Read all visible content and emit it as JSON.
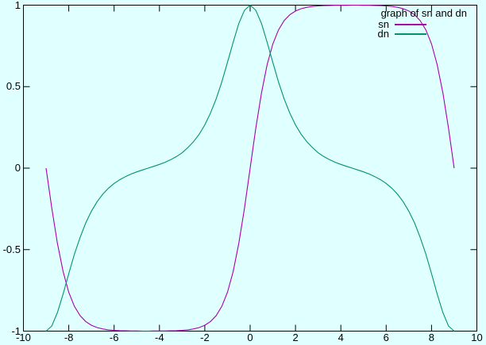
{
  "figure": {
    "background_color": "#e0ffff",
    "frame_color": "#000000"
  },
  "legend": {
    "title": "graph of sn and dn",
    "entries": [
      {
        "label": "sn",
        "color": "#aa00aa"
      },
      {
        "label": "dn",
        "color": "#009272"
      }
    ]
  },
  "chart_data": {
    "type": "line",
    "title": "graph of sn and dn",
    "xlabel": "",
    "ylabel": "",
    "x_range": [
      -10,
      10
    ],
    "y_range": [
      -1,
      1
    ],
    "x_ticks": [
      -10,
      -8,
      -6,
      -4,
      -2,
      0,
      2,
      4,
      6,
      8,
      10
    ],
    "x_tick_labels": [
      "-10",
      "-8",
      "-6",
      "-4",
      "-2",
      "0",
      "2",
      "4",
      "6",
      "8",
      "10"
    ],
    "y_ticks": [
      -1,
      -0.5,
      0,
      0.5,
      1
    ],
    "y_tick_labels": [
      "-1",
      "-0.5",
      "0",
      "0.5",
      "1"
    ],
    "grid": false,
    "legend_position": "top-right-inside",
    "background": "#e0ffff",
    "series": [
      {
        "name": "sn",
        "color": "#aa00aa",
        "points": [
          [
            -9,
            0
          ],
          [
            -8.75,
            -0.245
          ],
          [
            -8.5,
            -0.462
          ],
          [
            -8.25,
            -0.635
          ],
          [
            -8,
            -0.762
          ],
          [
            -7.75,
            -0.848
          ],
          [
            -7.5,
            -0.905
          ],
          [
            -7.25,
            -0.941
          ],
          [
            -7,
            -0.964
          ],
          [
            -6.75,
            -0.978
          ],
          [
            -6.5,
            -0.987
          ],
          [
            -6.25,
            -0.992
          ],
          [
            -6,
            -0.995
          ],
          [
            -5.75,
            -0.997
          ],
          [
            -5.5,
            -0.998
          ],
          [
            -5.25,
            -0.999
          ],
          [
            -5,
            -0.999
          ],
          [
            -4.75,
            -1
          ],
          [
            -4.5,
            -1
          ],
          [
            -4.25,
            -0.999
          ],
          [
            -4,
            -0.999
          ],
          [
            -3.75,
            -0.999
          ],
          [
            -3.5,
            -0.998
          ],
          [
            -3.25,
            -0.997
          ],
          [
            -3,
            -0.995
          ],
          [
            -2.75,
            -0.992
          ],
          [
            -2.5,
            -0.987
          ],
          [
            -2.25,
            -0.978
          ],
          [
            -2,
            -0.964
          ],
          [
            -1.75,
            -0.941
          ],
          [
            -1.5,
            -0.905
          ],
          [
            -1.25,
            -0.848
          ],
          [
            -1,
            -0.762
          ],
          [
            -0.75,
            -0.635
          ],
          [
            -0.5,
            -0.462
          ],
          [
            -0.25,
            -0.245
          ],
          [
            0,
            0
          ],
          [
            0.25,
            0.245
          ],
          [
            0.5,
            0.462
          ],
          [
            0.75,
            0.635
          ],
          [
            1,
            0.762
          ],
          [
            1.25,
            0.848
          ],
          [
            1.5,
            0.905
          ],
          [
            1.75,
            0.941
          ],
          [
            2,
            0.964
          ],
          [
            2.25,
            0.978
          ],
          [
            2.5,
            0.987
          ],
          [
            2.75,
            0.992
          ],
          [
            3,
            0.995
          ],
          [
            3.25,
            0.997
          ],
          [
            3.5,
            0.998
          ],
          [
            3.75,
            0.999
          ],
          [
            4,
            0.999
          ],
          [
            4.25,
            0.999
          ],
          [
            4.5,
            1
          ],
          [
            4.75,
            1
          ],
          [
            5,
            0.999
          ],
          [
            5.25,
            0.999
          ],
          [
            5.5,
            0.998
          ],
          [
            5.75,
            0.997
          ],
          [
            6,
            0.995
          ],
          [
            6.25,
            0.992
          ],
          [
            6.5,
            0.987
          ],
          [
            6.75,
            0.978
          ],
          [
            7,
            0.964
          ],
          [
            7.25,
            0.941
          ],
          [
            7.5,
            0.905
          ],
          [
            7.75,
            0.848
          ],
          [
            8,
            0.762
          ],
          [
            8.25,
            0.635
          ],
          [
            8.5,
            0.462
          ],
          [
            8.75,
            0.245
          ],
          [
            9,
            0
          ]
        ]
      },
      {
        "name": "dn",
        "color": "#009272",
        "points": [
          [
            -9,
            -1
          ],
          [
            -8.75,
            -0.969
          ],
          [
            -8.5,
            -0.886
          ],
          [
            -8.25,
            -0.772
          ],
          [
            -8,
            -0.647
          ],
          [
            -7.75,
            -0.528
          ],
          [
            -7.5,
            -0.425
          ],
          [
            -7.25,
            -0.336
          ],
          [
            -7,
            -0.264
          ],
          [
            -6.75,
            -0.206
          ],
          [
            -6.5,
            -0.16
          ],
          [
            -6.25,
            -0.123
          ],
          [
            -6,
            -0.094
          ],
          [
            -5.75,
            -0.071
          ],
          [
            -5.5,
            -0.052
          ],
          [
            -5.25,
            -0.036
          ],
          [
            -5,
            -0.023
          ],
          [
            -4.75,
            -0.011
          ],
          [
            -4.5,
            0
          ],
          [
            -4.25,
            0.011
          ],
          [
            -4,
            0.023
          ],
          [
            -3.75,
            0.036
          ],
          [
            -3.5,
            0.052
          ],
          [
            -3.25,
            0.071
          ],
          [
            -3,
            0.094
          ],
          [
            -2.75,
            0.126
          ],
          [
            -2.5,
            0.162
          ],
          [
            -2.25,
            0.208
          ],
          [
            -2,
            0.265
          ],
          [
            -1.75,
            0.337
          ],
          [
            -1.5,
            0.425
          ],
          [
            -1.25,
            0.529
          ],
          [
            -1,
            0.648
          ],
          [
            -0.75,
            0.772
          ],
          [
            -0.5,
            0.887
          ],
          [
            -0.25,
            0.969
          ],
          [
            0,
            1
          ],
          [
            0.25,
            0.969
          ],
          [
            0.5,
            0.887
          ],
          [
            0.75,
            0.772
          ],
          [
            1,
            0.648
          ],
          [
            1.25,
            0.529
          ],
          [
            1.5,
            0.425
          ],
          [
            1.75,
            0.337
          ],
          [
            2,
            0.265
          ],
          [
            2.25,
            0.208
          ],
          [
            2.5,
            0.162
          ],
          [
            2.75,
            0.126
          ],
          [
            3,
            0.094
          ],
          [
            3.25,
            0.071
          ],
          [
            3.5,
            0.052
          ],
          [
            3.75,
            0.036
          ],
          [
            4,
            0.023
          ],
          [
            4.25,
            0.011
          ],
          [
            4.5,
            0
          ],
          [
            4.75,
            -0.011
          ],
          [
            5,
            -0.023
          ],
          [
            5.25,
            -0.036
          ],
          [
            5.5,
            -0.052
          ],
          [
            5.75,
            -0.071
          ],
          [
            6,
            -0.094
          ],
          [
            6.25,
            -0.123
          ],
          [
            6.5,
            -0.16
          ],
          [
            6.75,
            -0.206
          ],
          [
            7,
            -0.264
          ],
          [
            7.25,
            -0.336
          ],
          [
            7.5,
            -0.425
          ],
          [
            7.75,
            -0.528
          ],
          [
            8,
            -0.647
          ],
          [
            8.25,
            -0.772
          ],
          [
            8.5,
            -0.886
          ],
          [
            8.75,
            -0.969
          ],
          [
            9,
            -1
          ]
        ]
      }
    ]
  }
}
